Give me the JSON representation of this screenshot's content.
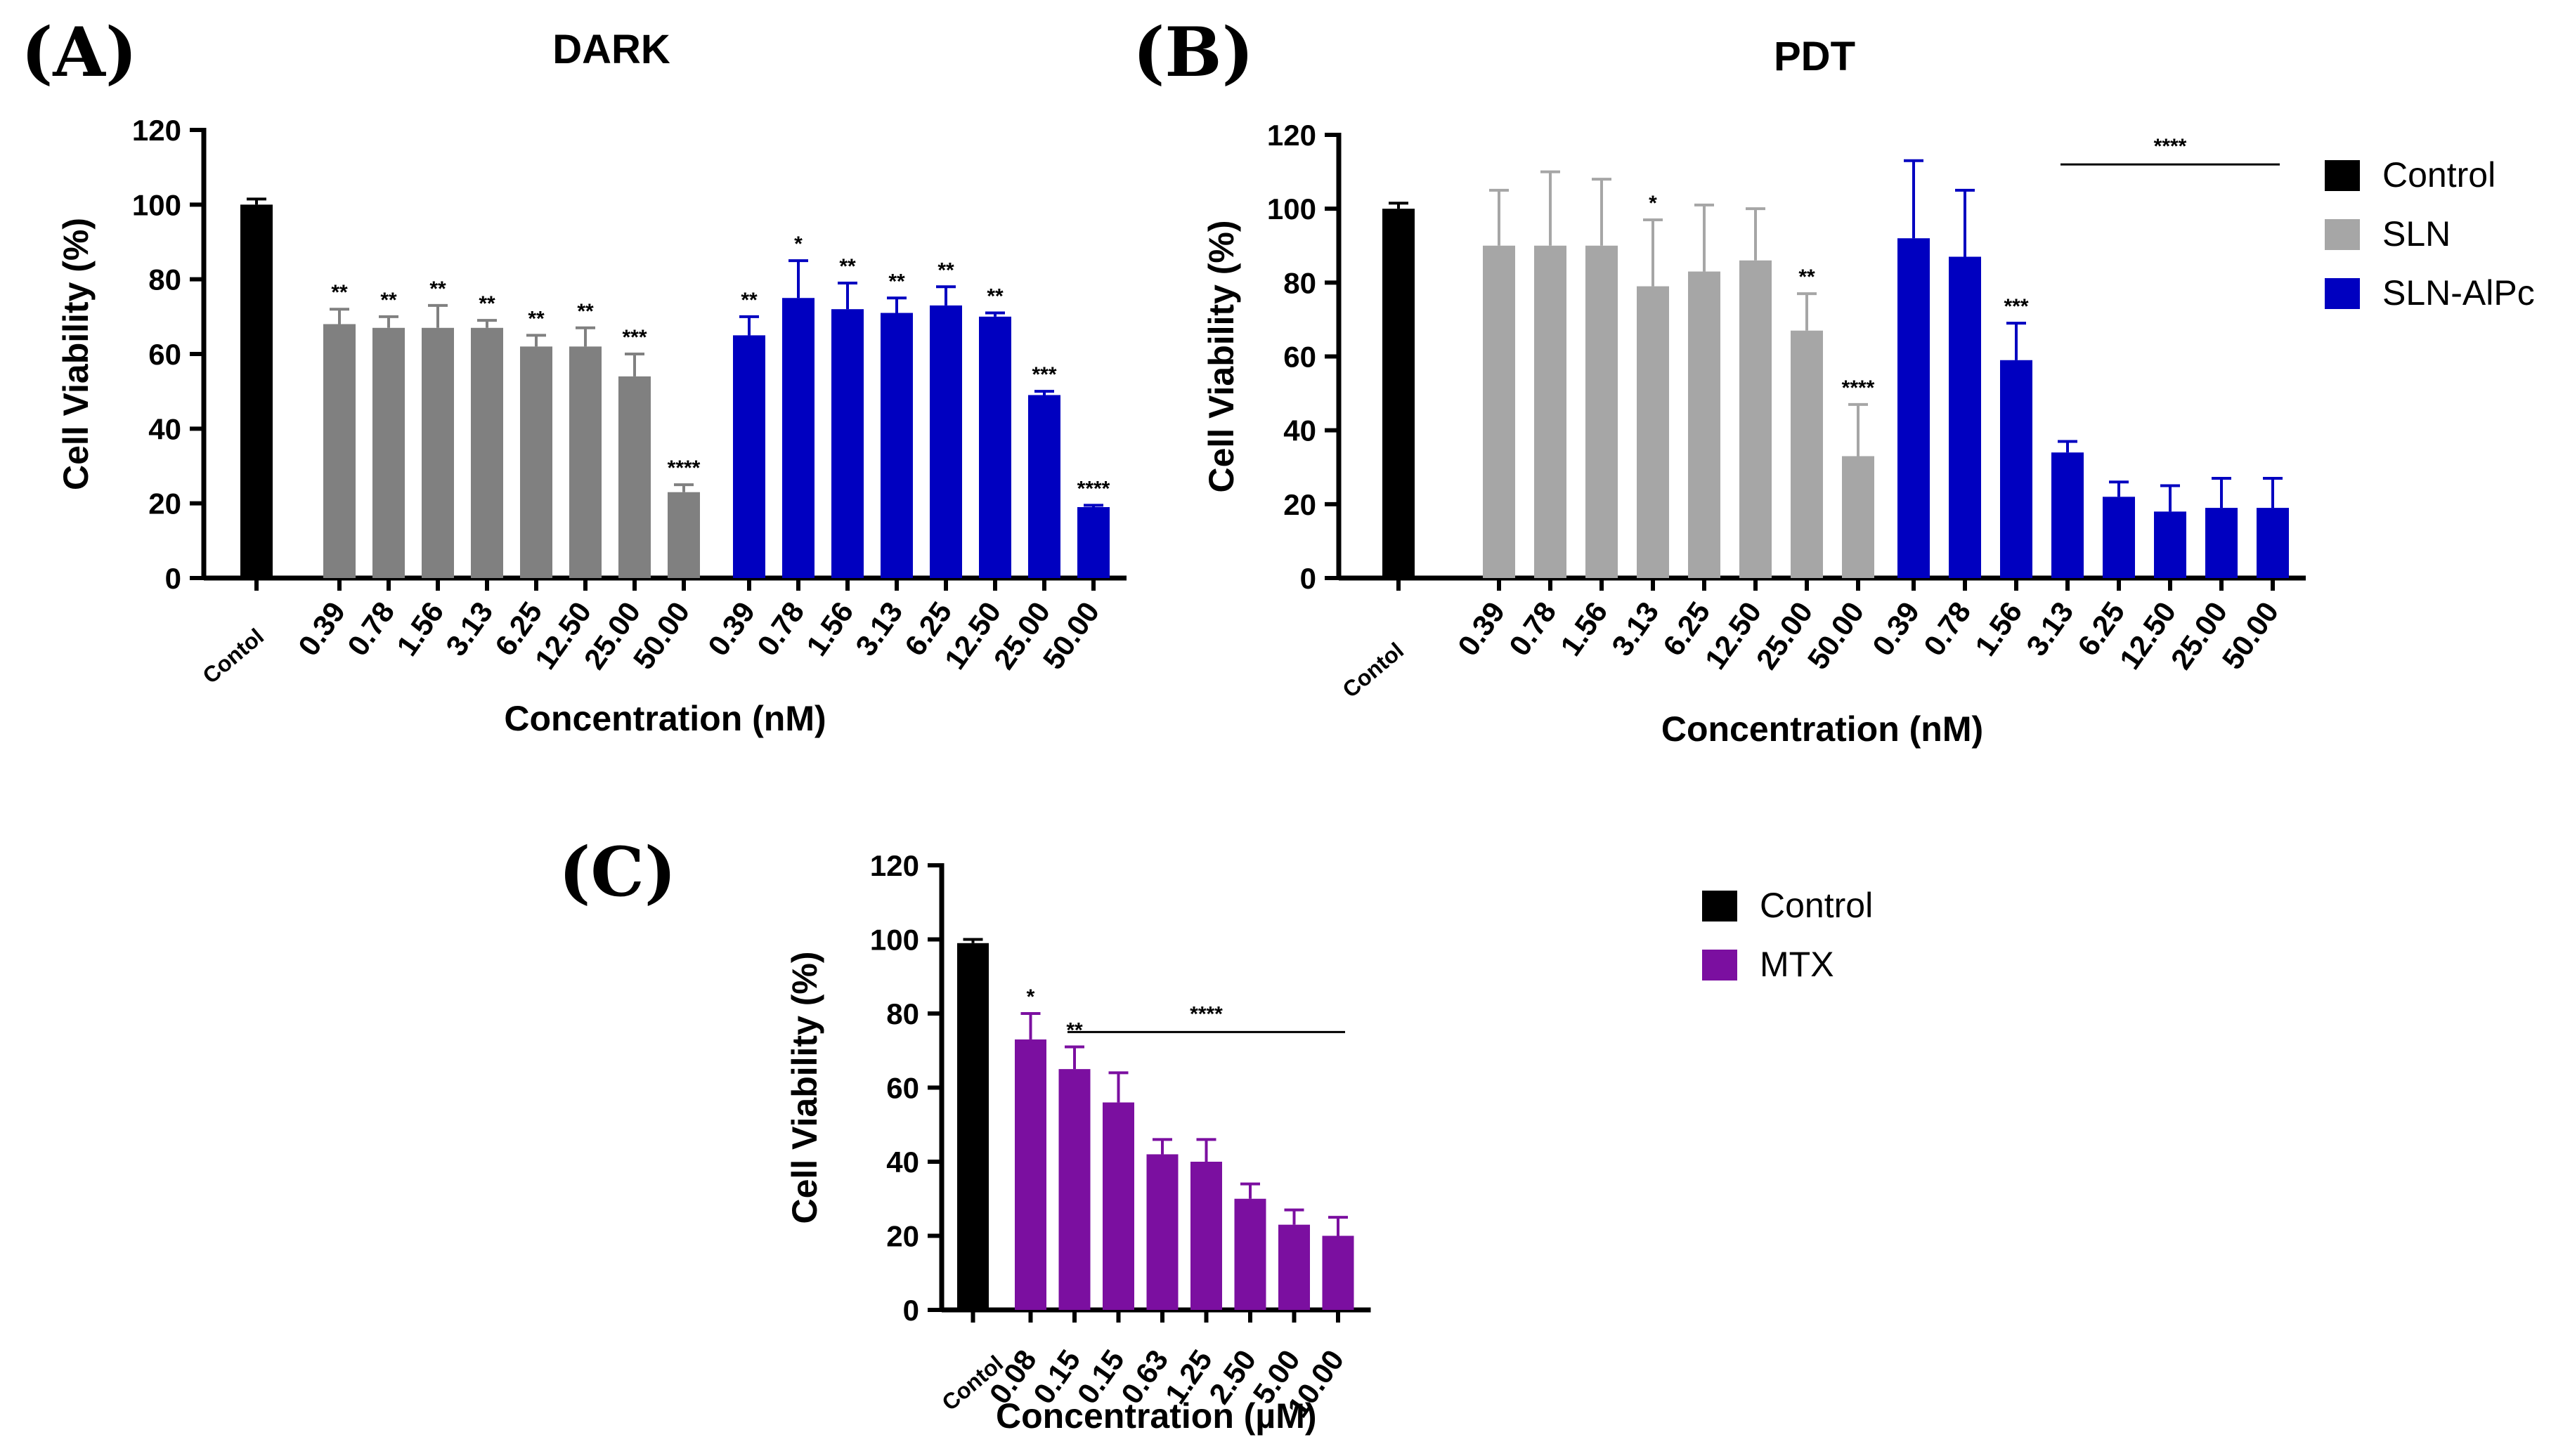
{
  "chart_data": [
    {
      "type": "bar",
      "panel_label": "(A)",
      "title": "DARK",
      "xlabel": "Concentration (nM)",
      "ylabel": "Cell Viability (%)",
      "ylim": [
        0,
        120
      ],
      "yticks": [
        0,
        20,
        40,
        60,
        80,
        100,
        120
      ],
      "colors": {
        "Control": "#000000",
        "SLN": "#808080",
        "SLN-AlPc": "#0000c0"
      },
      "groups": [
        {
          "name": "Control",
          "categories": [
            "Contol"
          ],
          "values": [
            100
          ],
          "errors": [
            1.5
          ],
          "sig": [
            ""
          ]
        },
        {
          "name": "SLN",
          "categories": [
            "0.39",
            "0.78",
            "1.56",
            "3.13",
            "6.25",
            "12.50",
            "25.00",
            "50.00"
          ],
          "values": [
            68,
            67,
            67,
            67,
            62,
            62,
            54,
            23
          ],
          "errors": [
            4,
            3,
            6,
            2,
            3,
            5,
            6,
            2
          ],
          "sig": [
            "**",
            "**",
            "**",
            "**",
            "**",
            "**",
            "***",
            "****"
          ]
        },
        {
          "name": "SLN-AlPc",
          "categories": [
            "0.39",
            "0.78",
            "1.56",
            "3.13",
            "6.25",
            "12.50",
            "25.00",
            "50.00"
          ],
          "values": [
            65,
            75,
            72,
            71,
            73,
            70,
            49,
            19
          ],
          "errors": [
            5,
            10,
            7,
            4,
            5,
            1,
            1,
            0.5
          ],
          "sig": [
            "**",
            "*",
            "**",
            "**",
            "**",
            "**",
            "***",
            "****"
          ]
        }
      ]
    },
    {
      "type": "bar",
      "panel_label": "(B)",
      "title": "PDT",
      "xlabel": "Concentration (nM)",
      "ylabel": "Cell Viability (%)",
      "ylim": [
        0,
        120
      ],
      "yticks": [
        0,
        20,
        40,
        60,
        80,
        100,
        120
      ],
      "colors": {
        "Control": "#000000",
        "SLN": "#a6a6a6",
        "SLN-AlPc": "#0000c0"
      },
      "legend": [
        "Control",
        "SLN",
        "SLN-AlPc"
      ],
      "groups": [
        {
          "name": "Control",
          "categories": [
            "Contol"
          ],
          "values": [
            100
          ],
          "errors": [
            1.5
          ],
          "sig": [
            ""
          ]
        },
        {
          "name": "SLN",
          "categories": [
            "0.39",
            "0.78",
            "1.56",
            "3.13",
            "6.25",
            "12.50",
            "25.00",
            "50.00"
          ],
          "values": [
            90,
            90,
            90,
            79,
            83,
            86,
            67,
            33
          ],
          "errors": [
            15,
            20,
            18,
            18,
            18,
            14,
            10,
            14
          ],
          "sig": [
            "",
            "",
            "",
            "*",
            "",
            "",
            "**",
            "****"
          ]
        },
        {
          "name": "SLN-AlPc",
          "categories": [
            "0.39",
            "0.78",
            "1.56",
            "3.13",
            "6.25",
            "12.50",
            "25.00",
            "50.00"
          ],
          "values": [
            92,
            87,
            59,
            34,
            22,
            18,
            19,
            19
          ],
          "errors": [
            21,
            18,
            10,
            3,
            4,
            7,
            8,
            8
          ],
          "sig": [
            "",
            "",
            "***",
            "",
            "",
            "",
            "",
            ""
          ]
        }
      ],
      "bracket": {
        "label": "****",
        "from": "3.13",
        "to": "50.00",
        "y": 112
      }
    },
    {
      "type": "bar",
      "panel_label": "(C)",
      "title": "",
      "xlabel": "Concentration (µM)",
      "ylabel": "Cell Viability (%)",
      "ylim": [
        0,
        120
      ],
      "yticks": [
        0,
        20,
        40,
        60,
        80,
        100,
        120
      ],
      "colors": {
        "Control": "#000000",
        "MTX": "#7b0fa0"
      },
      "legend": [
        "Control",
        "MTX"
      ],
      "groups": [
        {
          "name": "Control",
          "categories": [
            "Contol"
          ],
          "values": [
            99
          ],
          "errors": [
            1
          ],
          "sig": [
            ""
          ]
        },
        {
          "name": "MTX",
          "categories": [
            "0.08",
            "0.15",
            "0.15",
            "0.63",
            "1.25",
            "2.50",
            "5.00",
            "10.00"
          ],
          "values": [
            73,
            65,
            56,
            42,
            40,
            30,
            23,
            20
          ],
          "errors": [
            7,
            6,
            8,
            4,
            6,
            4,
            4,
            5
          ],
          "sig": [
            "*",
            "**",
            "",
            "",
            "",
            "",
            "",
            ""
          ]
        }
      ],
      "bracket": {
        "label": "****",
        "from": "0.15",
        "to": "10.00",
        "y": 75
      }
    }
  ]
}
